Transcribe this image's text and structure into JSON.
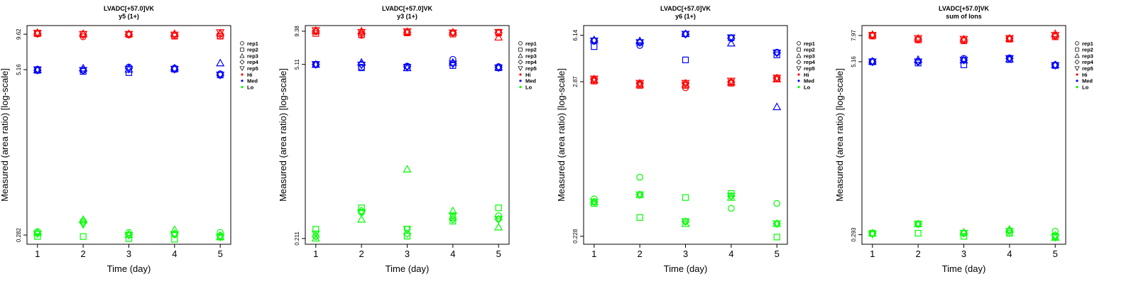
{
  "colors": {
    "Hi": "#ff0000",
    "Med": "#0000ff",
    "Lo": "#00ff00"
  },
  "legend": {
    "entries": [
      {
        "label": "rep1",
        "kind": "rep",
        "marker": "circle"
      },
      {
        "label": "rep2",
        "kind": "rep",
        "marker": "square"
      },
      {
        "label": "rep3",
        "kind": "rep",
        "marker": "triangle-up"
      },
      {
        "label": "rep4",
        "kind": "rep",
        "marker": "diamond"
      },
      {
        "label": "rep5",
        "kind": "rep",
        "marker": "triangle-down"
      },
      {
        "label": "Hi",
        "kind": "level",
        "marker": "dot"
      },
      {
        "label": "Med",
        "kind": "level",
        "marker": "dot"
      },
      {
        "label": "Lo",
        "kind": "level",
        "marker": "dot"
      }
    ]
  },
  "chart_data": [
    {
      "type": "scatter",
      "title": "LVADC[+57.0]VK",
      "subtitle": "y5 (1+)",
      "xlabel": "Time (day)",
      "ylabel": "Measured (area ratio) [log-scale]",
      "yscale": "log",
      "x": [
        1,
        2,
        3,
        4,
        5
      ],
      "yticks": [
        0.282,
        5.16,
        9.62
      ],
      "ytick_labels": [
        "0.282",
        "5.16",
        "9.62"
      ],
      "ylim": [
        0.24,
        11.2
      ],
      "grid": false,
      "legend_position": "right",
      "series": [
        {
          "level": "Hi",
          "rep": 1,
          "values": [
            9.8,
            9.2,
            9.5,
            9.3,
            9.3
          ]
        },
        {
          "level": "Hi",
          "rep": 2,
          "values": [
            9.7,
            9.6,
            9.6,
            9.3,
            9.3
          ]
        },
        {
          "level": "Hi",
          "rep": 3,
          "values": [
            9.9,
            9.7,
            9.7,
            9.7,
            9.8
          ]
        },
        {
          "level": "Hi",
          "rep": 4,
          "values": [
            9.7,
            9.5,
            9.6,
            9.5,
            9.6
          ]
        },
        {
          "level": "Hi",
          "rep": 5,
          "values": [
            9.8,
            9.6,
            9.6,
            9.5,
            9.9
          ]
        },
        {
          "level": "Med",
          "rep": 1,
          "values": [
            5.2,
            5.1,
            5.4,
            5.3,
            4.8
          ]
        },
        {
          "level": "Med",
          "rep": 2,
          "values": [
            5.1,
            5.0,
            4.9,
            5.2,
            4.7
          ]
        },
        {
          "level": "Med",
          "rep": 3,
          "values": [
            5.15,
            5.3,
            5.2,
            5.3,
            5.8
          ]
        },
        {
          "level": "Med",
          "rep": 4,
          "values": [
            5.1,
            5.1,
            5.3,
            5.2,
            4.7
          ]
        },
        {
          "level": "Med",
          "rep": 5,
          "values": [
            5.15,
            5.1,
            5.2,
            5.2,
            4.7
          ]
        },
        {
          "level": "Lo",
          "rep": 1,
          "values": [
            0.3,
            0.36,
            0.295,
            0.285,
            0.295
          ]
        },
        {
          "level": "Lo",
          "rep": 2,
          "values": [
            0.275,
            0.275,
            0.265,
            0.262,
            0.272
          ]
        },
        {
          "level": "Lo",
          "rep": 3,
          "values": [
            0.295,
            0.37,
            0.285,
            0.31,
            0.275
          ]
        },
        {
          "level": "Lo",
          "rep": 4,
          "values": [
            0.29,
            0.35,
            0.285,
            0.29,
            0.28
          ]
        },
        {
          "level": "Lo",
          "rep": 5,
          "values": [
            0.288,
            0.34,
            0.28,
            0.285,
            0.272
          ]
        }
      ]
    },
    {
      "type": "scatter",
      "title": "LVADC[+57.0]VK",
      "subtitle": "y3 (1+)",
      "xlabel": "Time (day)",
      "ylabel": "Measured (area ratio) [log-scale]",
      "yscale": "log",
      "x": [
        1,
        2,
        3,
        4,
        5
      ],
      "yticks": [
        0.211,
        5.11,
        9.38
      ],
      "ytick_labels": [
        "0.211",
        "5.11",
        "9.38"
      ],
      "ylim": [
        0.19,
        10.4
      ],
      "grid": false,
      "legend_position": "right",
      "series": [
        {
          "level": "Hi",
          "rep": 1,
          "values": [
            9.3,
            8.7,
            9.1,
            9.1,
            9.1
          ]
        },
        {
          "level": "Hi",
          "rep": 2,
          "values": [
            9.0,
            8.8,
            9.1,
            8.9,
            9.1
          ]
        },
        {
          "level": "Hi",
          "rep": 3,
          "values": [
            9.5,
            9.4,
            9.3,
            9.2,
            8.4
          ]
        },
        {
          "level": "Hi",
          "rep": 4,
          "values": [
            9.4,
            9.0,
            9.2,
            9.1,
            9.1
          ]
        },
        {
          "level": "Hi",
          "rep": 5,
          "values": [
            9.5,
            9.2,
            9.3,
            9.1,
            9.2
          ]
        },
        {
          "level": "Med",
          "rep": 1,
          "values": [
            5.1,
            4.85,
            4.95,
            5.6,
            4.9
          ]
        },
        {
          "level": "Med",
          "rep": 2,
          "values": [
            5.1,
            4.8,
            4.8,
            5.0,
            4.8
          ]
        },
        {
          "level": "Med",
          "rep": 3,
          "values": [
            5.1,
            5.3,
            4.8,
            5.3,
            4.85
          ]
        },
        {
          "level": "Med",
          "rep": 4,
          "values": [
            5.1,
            5.1,
            4.9,
            5.2,
            4.85
          ]
        },
        {
          "level": "Med",
          "rep": 5,
          "values": [
            5.1,
            5.05,
            4.85,
            5.15,
            4.8
          ]
        },
        {
          "level": "Lo",
          "rep": 1,
          "values": [
            0.22,
            0.34,
            0.25,
            0.31,
            0.32
          ]
        },
        {
          "level": "Lo",
          "rep": 2,
          "values": [
            0.25,
            0.37,
            0.22,
            0.29,
            0.37
          ]
        },
        {
          "level": "Lo",
          "rep": 3,
          "values": [
            0.212,
            0.3,
            0.75,
            0.35,
            0.26
          ]
        },
        {
          "level": "Lo",
          "rep": 4,
          "values": [
            0.22,
            0.35,
            0.23,
            0.3,
            0.3
          ]
        },
        {
          "level": "Lo",
          "rep": 5,
          "values": [
            0.23,
            0.34,
            0.25,
            0.32,
            0.3
          ]
        }
      ]
    },
    {
      "type": "scatter",
      "title": "LVADC[+57.0]VK",
      "subtitle": "y6 (1+)",
      "xlabel": "Time (day)",
      "ylabel": "Measured (area ratio) [log-scale]",
      "yscale": "log",
      "x": [
        1,
        2,
        3,
        4,
        5
      ],
      "yticks": [
        0.228,
        2.87,
        6.14
      ],
      "ytick_labels": [
        "0.228",
        "2.87",
        "6.14"
      ],
      "ylim": [
        0.2,
        7.2
      ],
      "grid": false,
      "legend_position": "right",
      "series": [
        {
          "level": "Hi",
          "rep": 1,
          "values": [
            2.95,
            2.75,
            2.6,
            2.85,
            3.0
          ]
        },
        {
          "level": "Hi",
          "rep": 2,
          "values": [
            2.9,
            2.7,
            2.7,
            2.8,
            3.0
          ]
        },
        {
          "level": "Hi",
          "rep": 3,
          "values": [
            2.95,
            2.75,
            2.75,
            2.85,
            3.0
          ]
        },
        {
          "level": "Hi",
          "rep": 4,
          "values": [
            3.0,
            2.8,
            2.8,
            2.85,
            3.05
          ]
        },
        {
          "level": "Hi",
          "rep": 5,
          "values": [
            3.0,
            2.8,
            2.8,
            2.9,
            3.05
          ]
        },
        {
          "level": "Med",
          "rep": 1,
          "values": [
            5.6,
            5.2,
            6.25,
            5.85,
            4.65
          ]
        },
        {
          "level": "Med",
          "rep": 2,
          "values": [
            5.1,
            5.45,
            4.1,
            5.9,
            4.45
          ]
        },
        {
          "level": "Med",
          "rep": 3,
          "values": [
            5.7,
            5.6,
            6.3,
            5.4,
            1.9
          ]
        },
        {
          "level": "Med",
          "rep": 4,
          "values": [
            5.6,
            5.45,
            6.25,
            5.85,
            4.6
          ]
        },
        {
          "level": "Med",
          "rep": 5,
          "values": [
            5.6,
            5.45,
            6.25,
            5.9,
            4.6
          ]
        },
        {
          "level": "Lo",
          "rep": 1,
          "values": [
            0.42,
            0.6,
            0.29,
            0.36,
            0.39
          ]
        },
        {
          "level": "Lo",
          "rep": 2,
          "values": [
            0.39,
            0.31,
            0.43,
            0.46,
            0.225
          ]
        },
        {
          "level": "Lo",
          "rep": 3,
          "values": [
            0.4,
            0.45,
            0.28,
            0.43,
            0.28
          ]
        },
        {
          "level": "Lo",
          "rep": 4,
          "values": [
            0.4,
            0.45,
            0.29,
            0.44,
            0.28
          ]
        },
        {
          "level": "Lo",
          "rep": 5,
          "values": [
            0.4,
            0.45,
            0.29,
            0.44,
            0.28
          ]
        }
      ]
    },
    {
      "type": "scatter",
      "title": "LVADC[+57.0]VK",
      "subtitle": "sum of Ions",
      "xlabel": "Time (day)",
      "ylabel": "Measured (area ratio) [log-scale]",
      "yscale": "log",
      "x": [
        1,
        2,
        3,
        4,
        5
      ],
      "yticks": [
        0.293,
        5.16,
        7.97
      ],
      "ytick_labels": [
        "0.293",
        "5.16",
        "7.97"
      ],
      "ylim": [
        0.25,
        9.4
      ],
      "grid": false,
      "legend_position": "right",
      "series": [
        {
          "level": "Hi",
          "rep": 1,
          "values": [
            8.0,
            7.5,
            7.4,
            7.6,
            7.9
          ]
        },
        {
          "level": "Hi",
          "rep": 2,
          "values": [
            7.9,
            7.4,
            7.3,
            7.5,
            7.8
          ]
        },
        {
          "level": "Hi",
          "rep": 3,
          "values": [
            8.1,
            7.6,
            7.5,
            7.6,
            8.2
          ]
        },
        {
          "level": "Hi",
          "rep": 4,
          "values": [
            8.0,
            7.5,
            7.4,
            7.6,
            7.9
          ]
        },
        {
          "level": "Hi",
          "rep": 5,
          "values": [
            8.0,
            7.6,
            7.5,
            7.6,
            8.0
          ]
        },
        {
          "level": "Med",
          "rep": 1,
          "values": [
            5.2,
            5.2,
            5.45,
            5.5,
            4.9
          ]
        },
        {
          "level": "Med",
          "rep": 2,
          "values": [
            5.15,
            5.05,
            4.9,
            5.35,
            4.85
          ]
        },
        {
          "level": "Med",
          "rep": 3,
          "values": [
            5.2,
            5.35,
            5.3,
            5.4,
            4.9
          ]
        },
        {
          "level": "Med",
          "rep": 4,
          "values": [
            5.15,
            5.15,
            5.3,
            5.45,
            4.9
          ]
        },
        {
          "level": "Med",
          "rep": 5,
          "values": [
            5.15,
            5.15,
            5.3,
            5.45,
            4.85
          ]
        },
        {
          "level": "Lo",
          "rep": 1,
          "values": [
            0.3,
            0.35,
            0.3,
            0.3,
            0.31
          ]
        },
        {
          "level": "Lo",
          "rep": 2,
          "values": [
            0.3,
            0.3,
            0.285,
            0.3,
            0.285
          ]
        },
        {
          "level": "Lo",
          "rep": 3,
          "values": [
            0.3,
            0.35,
            0.305,
            0.32,
            0.28
          ]
        },
        {
          "level": "Lo",
          "rep": 4,
          "values": [
            0.3,
            0.35,
            0.3,
            0.31,
            0.29
          ]
        },
        {
          "level": "Lo",
          "rep": 5,
          "values": [
            0.295,
            0.35,
            0.3,
            0.31,
            0.28
          ]
        }
      ]
    }
  ]
}
